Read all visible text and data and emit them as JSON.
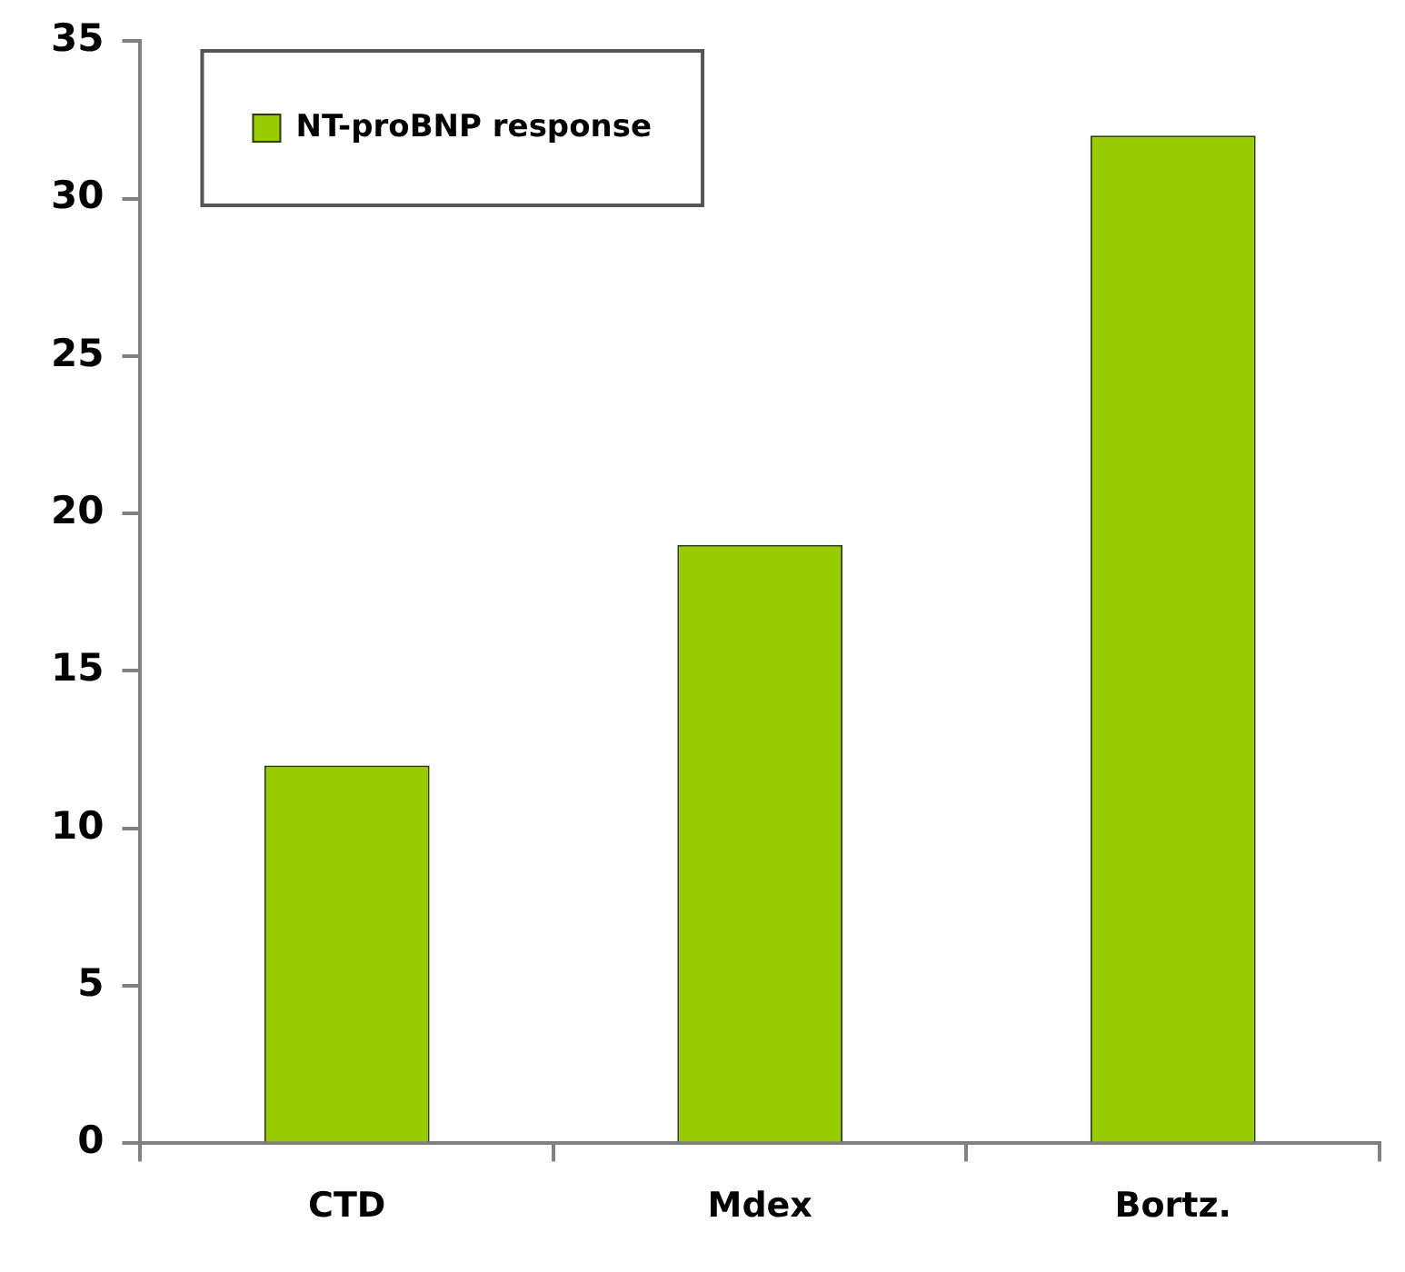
{
  "chart_data": {
    "type": "bar",
    "categories": [
      "CTD",
      "Mdex",
      "Bortz."
    ],
    "series": [
      {
        "name": "NT-proBNP response",
        "color": "#99cc00",
        "values": [
          12,
          19,
          32
        ]
      }
    ],
    "ylim": [
      0,
      35
    ],
    "yticks": [
      0,
      5,
      10,
      15,
      20,
      25,
      30,
      35
    ],
    "grid": false,
    "legend": "top left"
  }
}
